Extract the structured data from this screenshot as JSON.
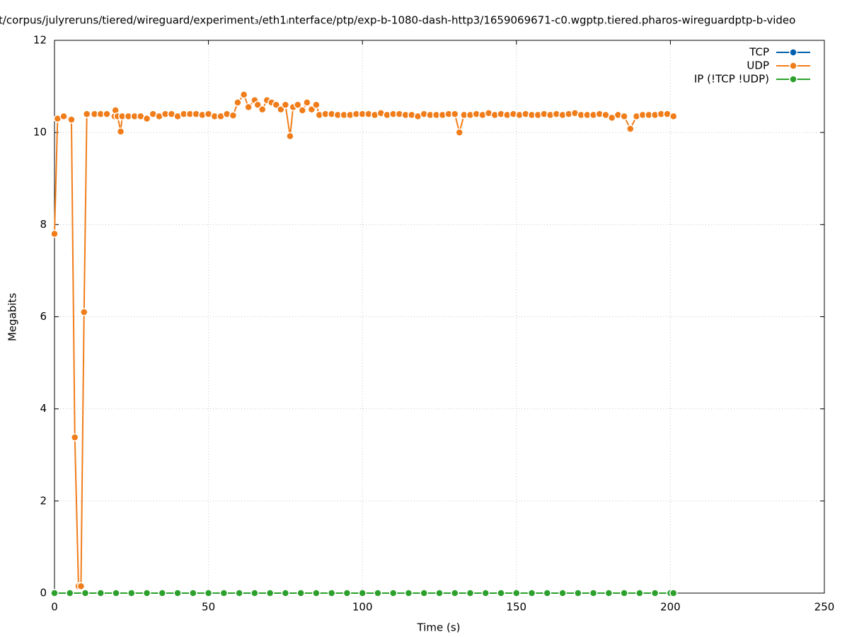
{
  "chart_data": {
    "type": "line",
    "title": "t/corpus/julyreruns/tiered/wireguard/experiment₃/eth1ᵢnterface/ptp/exp-b-1080-dash-http3/1659069671-c0.wgptp.tiered.pharos-wireguardptp-b-video",
    "x_label": "Time (s)",
    "y_label": "Megabits",
    "xlim": [
      0,
      250
    ],
    "xticks": [
      0,
      50,
      100,
      150,
      200,
      250
    ],
    "ylim": [
      0,
      12
    ],
    "yticks": [
      0,
      2,
      4,
      6,
      8,
      10,
      12
    ],
    "grid": true,
    "legend": "top-right",
    "series": [
      {
        "name": "TCP",
        "color": "#0060ad",
        "x": [],
        "values": []
      },
      {
        "name": "UDP",
        "color": "#f07d1a",
        "x": [
          0,
          1,
          3,
          5.5,
          6.6,
          7.8,
          8.6,
          9.6,
          10.5,
          13,
          15,
          17,
          19.5,
          19.8,
          20.5,
          21.5,
          22,
          24,
          26,
          28,
          30,
          32,
          34,
          36,
          38,
          40,
          42,
          44,
          46,
          48,
          50,
          52,
          54,
          56,
          58,
          59.5,
          61.5,
          63,
          65,
          66,
          67.5,
          69,
          70.5,
          72,
          73.5,
          75,
          76.5,
          77.5,
          79,
          80.5,
          82,
          83.5,
          85,
          86,
          88,
          90,
          92,
          94,
          96,
          98,
          100,
          102,
          104,
          106,
          108,
          110,
          112,
          114,
          116,
          118,
          120,
          122,
          124,
          126,
          128,
          130,
          131.5,
          133,
          135,
          137,
          139,
          141,
          143,
          145,
          147,
          149,
          151,
          153,
          155,
          157,
          159,
          161,
          163,
          165,
          167,
          169,
          171,
          173,
          175,
          177,
          179,
          181,
          183,
          185,
          187,
          189,
          191,
          193,
          195,
          197,
          199,
          201
        ],
        "values": [
          7.8,
          10.3,
          10.35,
          10.28,
          3.38,
          0.15,
          0.15,
          6.1,
          10.4,
          10.4,
          10.4,
          10.4,
          10.35,
          10.48,
          10.35,
          10.02,
          10.35,
          10.35,
          10.35,
          10.35,
          10.3,
          10.4,
          10.35,
          10.4,
          10.4,
          10.35,
          10.4,
          10.4,
          10.4,
          10.38,
          10.4,
          10.35,
          10.35,
          10.4,
          10.37,
          10.65,
          10.82,
          10.55,
          10.7,
          10.6,
          10.5,
          10.7,
          10.65,
          10.6,
          10.5,
          10.6,
          9.92,
          10.55,
          10.6,
          10.48,
          10.65,
          10.5,
          10.6,
          10.38,
          10.4,
          10.4,
          10.38,
          10.38,
          10.38,
          10.4,
          10.4,
          10.4,
          10.38,
          10.42,
          10.38,
          10.4,
          10.4,
          10.38,
          10.38,
          10.35,
          10.4,
          10.38,
          10.38,
          10.38,
          10.4,
          10.4,
          10.0,
          10.38,
          10.38,
          10.4,
          10.38,
          10.42,
          10.38,
          10.4,
          10.38,
          10.4,
          10.38,
          10.4,
          10.38,
          10.38,
          10.4,
          10.38,
          10.4,
          10.38,
          10.4,
          10.42,
          10.38,
          10.38,
          10.38,
          10.4,
          10.38,
          10.32,
          10.38,
          10.35,
          10.08,
          10.35,
          10.38,
          10.38,
          10.38,
          10.4,
          10.4,
          10.35
        ]
      },
      {
        "name": "IP (!TCP  !UDP)",
        "color": "#2ca02c",
        "x": [
          0,
          5,
          10,
          15,
          20,
          25,
          30,
          35,
          40,
          45,
          50,
          55,
          60,
          65,
          70,
          75,
          80,
          85,
          90,
          95,
          100,
          105,
          110,
          115,
          120,
          125,
          130,
          135,
          140,
          145,
          150,
          155,
          160,
          165,
          170,
          175,
          180,
          185,
          190,
          195,
          200,
          201
        ],
        "values": [
          0,
          0,
          0,
          0,
          0,
          0,
          0,
          0,
          0,
          0,
          0,
          0,
          0,
          0,
          0,
          0,
          0,
          0,
          0,
          0,
          0,
          0,
          0,
          0,
          0,
          0,
          0,
          0,
          0,
          0,
          0,
          0,
          0,
          0,
          0,
          0,
          0,
          0,
          0,
          0,
          0,
          0
        ]
      }
    ]
  }
}
